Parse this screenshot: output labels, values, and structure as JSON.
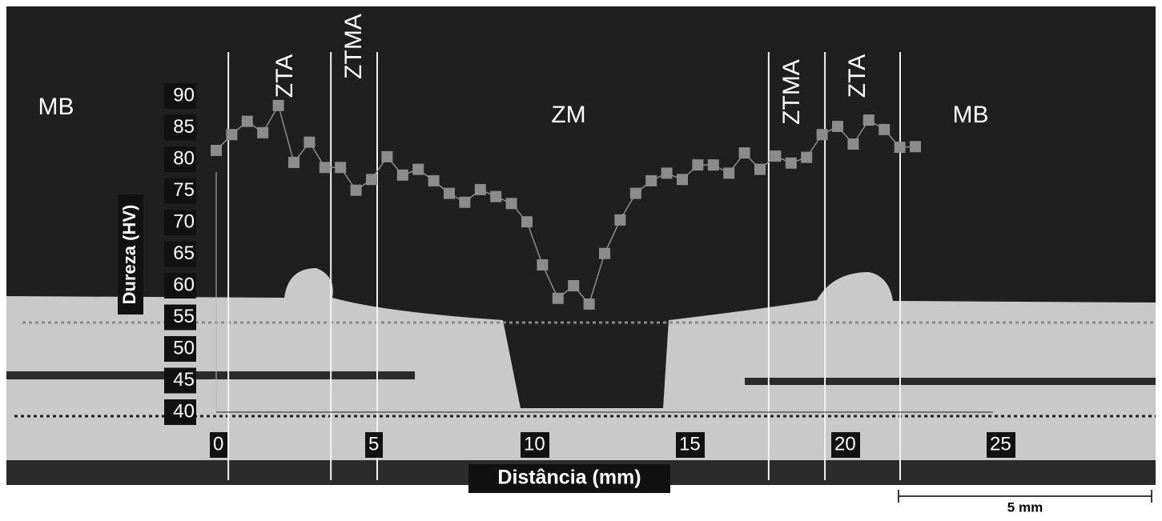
{
  "chart_data": {
    "type": "line",
    "x": [
      0,
      0.5,
      1,
      1.5,
      2,
      2.5,
      3,
      3.5,
      4,
      4.5,
      5,
      5.5,
      6,
      6.5,
      7,
      7.5,
      8,
      8.5,
      9,
      9.5,
      10,
      10.5,
      11,
      11.5,
      12,
      12.5,
      13,
      13.5,
      14,
      14.5,
      15,
      15.5,
      16,
      16.5,
      17,
      17.5,
      18,
      18.5,
      19,
      19.5,
      20,
      20.5,
      21,
      21.5,
      22,
      22.5
    ],
    "series": [
      {
        "color": "#8c8c8c",
        "values": [
          81.4,
          83.9,
          86.0,
          84.2,
          88.5,
          79.5,
          82.7,
          78.7,
          78.7,
          75.1,
          76.8,
          80.4,
          77.5,
          78.4,
          76.6,
          74.6,
          73.2,
          75.2,
          74.1,
          73.0,
          70.1,
          63.3,
          58.0,
          60.0,
          57.1,
          65.1,
          70.4,
          74.6,
          76.6,
          77.8,
          76.8,
          79.1,
          79.1,
          77.8,
          81.0,
          78.4,
          80.5,
          79.4,
          80.3,
          83.9,
          85.2,
          82.4,
          86.2,
          84.7,
          81.9,
          82.0
        ]
      }
    ],
    "xlabel": "Distância (mm)",
    "ylabel": "Dureza (HV)",
    "xlim": [
      0,
      25
    ],
    "ylim": [
      40,
      90
    ],
    "xticks": [
      0,
      5,
      10,
      15,
      20,
      25
    ],
    "yticks": [
      40,
      45,
      50,
      55,
      60,
      65,
      70,
      75,
      80,
      85,
      90
    ],
    "zone_boundaries": [
      0.39,
      3.69,
      5.18,
      17.78,
      19.59,
      22.01
    ],
    "zones": [
      "MB",
      "ZTA",
      "ZTMA",
      "ZM",
      "ZTMA",
      "ZTA",
      "MB"
    ],
    "scale_bar": "5 mm"
  }
}
